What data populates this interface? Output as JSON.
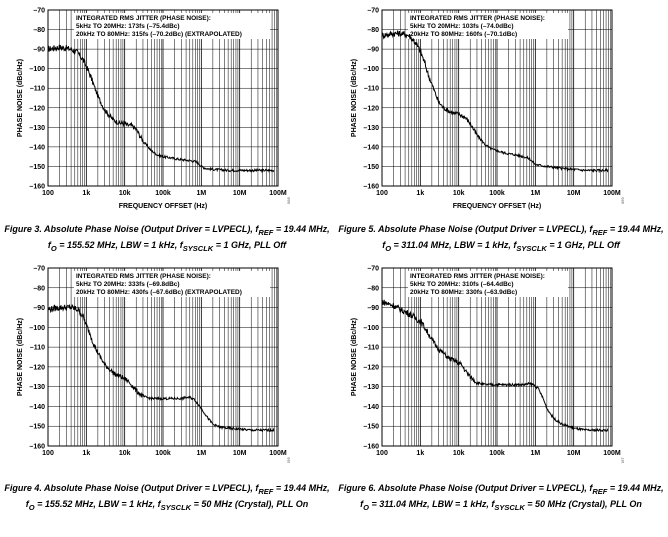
{
  "chart_data": [
    {
      "id": "fig3",
      "type": "line",
      "xlabel": "FREQUENCY OFFSET (Hz)",
      "ylabel": "PHASE NOISE (dBc/Hz)",
      "xscale": "log",
      "xlim": [
        100,
        100000000
      ],
      "ylim": [
        -160,
        -70
      ],
      "xticks": [
        "100",
        "1k",
        "10k",
        "100k",
        "1M",
        "10M",
        "100M"
      ],
      "yticks": [
        "–70",
        "–80",
        "–90",
        "–100",
        "–110",
        "–120",
        "–130",
        "–140",
        "–150",
        "–160"
      ],
      "grid": true,
      "annotation": [
        "INTEGRATED RMS JITTER (PHASE NOISE):",
        "5kHz TO 20MHz: 173fs (–75.4dBc)",
        "20kHz TO 80MHz: 315fs (–70.2dBc) (EXTRAPOLATED)"
      ],
      "figure_id": "068",
      "series": [
        {
          "x": [
            100,
            200,
            400,
            600,
            800,
            1000,
            1300,
            1600,
            2000,
            2500,
            3000,
            4000,
            5000,
            6000,
            8000,
            10000,
            12000,
            15000,
            20000,
            30000,
            50000,
            70000,
            100000,
            150000,
            200000,
            300000,
            500000,
            700000,
            800000,
            1000000,
            1300000,
            2000000,
            5000000,
            10000000,
            20000000,
            80000000
          ],
          "y": [
            -90,
            -89,
            -90,
            -92,
            -95,
            -99,
            -104,
            -109,
            -114,
            -118,
            -121,
            -124,
            -126,
            -127,
            -128,
            -128,
            -129,
            -129,
            -131,
            -137,
            -142,
            -144,
            -145,
            -145.5,
            -146,
            -146.5,
            -147,
            -147.5,
            -148,
            -150,
            -151,
            -151.5,
            -152,
            -152,
            -152,
            -152
          ]
        }
      ]
    },
    {
      "id": "fig5",
      "type": "line",
      "xlabel": "FREQUENCY OFFSET (Hz)",
      "ylabel": "PHASE NOISE (dBc/Hz)",
      "xscale": "log",
      "xlim": [
        100,
        100000000
      ],
      "ylim": [
        -160,
        -70
      ],
      "xticks": [
        "100",
        "1k",
        "10k",
        "100k",
        "1M",
        "10M",
        "100M"
      ],
      "yticks": [
        "–70",
        "–80",
        "–90",
        "–100",
        "–110",
        "–120",
        "–130",
        "–140",
        "–150",
        "–160"
      ],
      "grid": true,
      "annotation": [
        "INTEGRATED RMS JITTER (PHASE NOISE):",
        "5kHz TO 20MHz: 103fs (–74.0dBc)",
        "20kHz TO 80MHz: 160fs (–70.1dBc)"
      ],
      "figure_id": "069",
      "series": [
        {
          "x": [
            100,
            200,
            300,
            500,
            700,
            1000,
            1300,
            1600,
            2000,
            2500,
            3000,
            4000,
            5000,
            6000,
            8000,
            10000,
            12000,
            15000,
            20000,
            30000,
            50000,
            70000,
            100000,
            150000,
            200000,
            300000,
            500000,
            700000,
            1000000,
            2000000,
            5000000,
            10000000,
            20000000,
            80000000
          ],
          "y": [
            -83,
            -82,
            -82,
            -83,
            -86,
            -91,
            -97,
            -103,
            -108,
            -113,
            -117,
            -120,
            -121,
            -122,
            -123,
            -123,
            -124,
            -125,
            -128,
            -134,
            -139,
            -141,
            -142,
            -143,
            -143.5,
            -144,
            -145,
            -146,
            -149,
            -150,
            -151,
            -151.5,
            -152,
            -152
          ]
        }
      ]
    },
    {
      "id": "fig4",
      "type": "line",
      "xlabel": "FREQUENCY OFFSET (Hz)",
      "ylabel": "PHASE NOISE (dBc/Hz)",
      "xscale": "log",
      "xlim": [
        100,
        100000000
      ],
      "ylim": [
        -160,
        -70
      ],
      "xticks": [
        "100",
        "1k",
        "10k",
        "100k",
        "1M",
        "10M",
        "100M"
      ],
      "yticks": [
        "–70",
        "–80",
        "–90",
        "–100",
        "–110",
        "–120",
        "–130",
        "–140",
        "–150",
        "–160"
      ],
      "grid": true,
      "annotation": [
        "INTEGRATED RMS JITTER (PHASE NOISE):",
        "5kHz TO 20MHz: 333fs (–69.8dBc)",
        "20kHz TO 80MHz: 430fs (–67.6dBc) (EXTRAPOLATED)"
      ],
      "figure_id": "056",
      "series": [
        {
          "x": [
            100,
            200,
            400,
            600,
            800,
            1000,
            1300,
            1600,
            2000,
            2500,
            3000,
            4000,
            5000,
            6000,
            8000,
            10000,
            12000,
            15000,
            20000,
            30000,
            50000,
            100000,
            200000,
            300000,
            400000,
            500000,
            600000,
            700000,
            1000000,
            1500000,
            2000000,
            3000000,
            5000000,
            10000000,
            20000000,
            80000000
          ],
          "y": [
            -91,
            -90,
            -90,
            -91,
            -94,
            -99,
            -104,
            -109,
            -113,
            -116,
            -119,
            -121,
            -123,
            -124,
            -125,
            -126,
            -127,
            -129,
            -132,
            -135,
            -136,
            -136,
            -136,
            -136,
            -135.5,
            -135.5,
            -136,
            -137,
            -141,
            -146,
            -149,
            -150.5,
            -151,
            -151.5,
            -152,
            -152
          ]
        }
      ]
    },
    {
      "id": "fig6",
      "type": "line",
      "xlabel": "FREQUENCY OFFSET (Hz)",
      "ylabel": "PHASE NOISE (dBc/Hz)",
      "xscale": "log",
      "xlim": [
        100,
        100000000
      ],
      "ylim": [
        -160,
        -70
      ],
      "xticks": [
        "100",
        "1k",
        "10k",
        "100k",
        "1M",
        "10M",
        "100M"
      ],
      "yticks": [
        "–70",
        "–80",
        "–90",
        "–100",
        "–110",
        "–120",
        "–130",
        "–140",
        "–150",
        "–160"
      ],
      "grid": true,
      "annotation": [
        "INTEGRATED RMS JITTER (PHASE NOISE):",
        "5kHz TO 20MHz: 310fs (–64.4dBc)",
        "20kHz TO 80MHz: 330fs (–63.9dBc)"
      ],
      "figure_id": "067",
      "series": [
        {
          "x": [
            100,
            200,
            300,
            500,
            700,
            1000,
            1300,
            1600,
            2000,
            2500,
            3000,
            4000,
            5000,
            6000,
            8000,
            10000,
            12000,
            15000,
            20000,
            30000,
            50000,
            100000,
            200000,
            300000,
            500000,
            700000,
            900000,
            1200000,
            1600000,
            2000000,
            3000000,
            5000000,
            10000000,
            20000000,
            80000000
          ],
          "y": [
            -87,
            -89,
            -91,
            -93,
            -95,
            -97,
            -100,
            -103,
            -106,
            -109,
            -111,
            -113,
            -115,
            -116,
            -117,
            -118,
            -119,
            -122,
            -125,
            -128,
            -129,
            -129,
            -129,
            -129,
            -129,
            -128.5,
            -129,
            -131,
            -136,
            -141,
            -146,
            -149,
            -151,
            -152,
            -152
          ]
        }
      ]
    }
  ],
  "captions": {
    "fig3": {
      "line1": "Figure 3. Absolute Phase Noise (Output Driver = LVPECL), f",
      "sub1": "REF",
      "rest1": " = 19.44 MHz,",
      "line2": "f",
      "sub2": "O",
      "rest2": " = 155.52 MHz, LBW = 1 kHz, f",
      "sub3": "SYSCLK",
      "rest3": " = 1 GHz, PLL Off"
    },
    "fig5": {
      "line1": "Figure 5. Absolute Phase Noise (Output Driver = LVPECL), f",
      "sub1": "REF",
      "rest1": " = 19.44 MHz,",
      "line2": "f",
      "sub2": "O",
      "rest2": " = 311.04 MHz, LBW = 1 kHz, f",
      "sub3": "SYSCLK",
      "rest3": " = 1 GHz, PLL Off"
    },
    "fig4": {
      "line1": "Figure 4. Absolute Phase Noise (Output Driver = LVPECL), f",
      "sub1": "REF",
      "rest1": " = 19.44 MHz,",
      "line2": "f",
      "sub2": "O",
      "rest2": " = 155.52 MHz, LBW = 1 kHz, f",
      "sub3": "SYSCLK",
      "rest3": " = 50 MHz (Crystal), PLL On"
    },
    "fig6": {
      "line1": "Figure 6. Absolute Phase Noise (Output Driver = LVPECL), f",
      "sub1": "REF",
      "rest1": " = 19.44 MHz,",
      "line2": "f",
      "sub2": "O",
      "rest2": " = 311.04 MHz, LBW = 1 kHz, f",
      "sub3": "SYSCLK",
      "rest3": " = 50 MHz (Crystal), PLL On"
    }
  }
}
